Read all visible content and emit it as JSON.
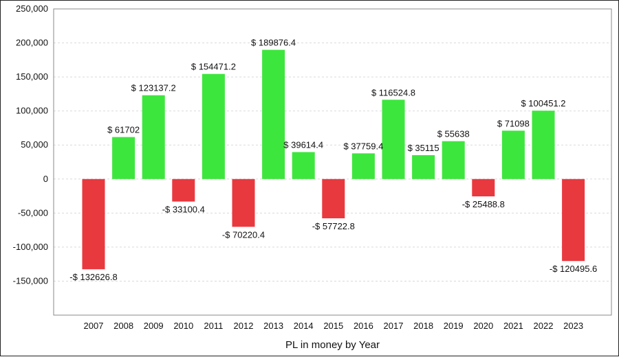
{
  "chart_data": {
    "type": "bar",
    "title": "",
    "xlabel": "PL in money by Year",
    "ylabel": "",
    "categories": [
      "2007",
      "2008",
      "2009",
      "2010",
      "2011",
      "2012",
      "2013",
      "2014",
      "2015",
      "2016",
      "2017",
      "2018",
      "2019",
      "2020",
      "2021",
      "2022",
      "2023"
    ],
    "values": [
      -132626.8,
      61702,
      123137.2,
      -33100.4,
      154471.2,
      -70220.4,
      189876.4,
      39614.4,
      -57722.8,
      37759.4,
      116524.8,
      35115,
      55638,
      -25488.8,
      71098,
      100451.2,
      -120495.6
    ],
    "data_labels": [
      "-$ 132626.8",
      "$ 61702",
      "$ 123137.2",
      "-$ 33100.4",
      "$ 154471.2",
      "-$ 70220.4",
      "$ 189876.4",
      "$ 39614.4",
      "-$ 57722.8",
      "$ 37759.4",
      "$ 116524.8",
      "$ 35115",
      "$ 55638",
      "-$ 25488.8",
      "$ 71098",
      "$ 100451.2",
      "-$ 120495.6"
    ],
    "y_ticks": [
      250000,
      200000,
      150000,
      100000,
      50000,
      0,
      -50000,
      -100000,
      -150000
    ],
    "y_tick_labels": [
      "250,000",
      "200,000",
      "150,000",
      "100,000",
      "50,000",
      "0",
      "-50,000",
      "-100,000",
      "-150,000"
    ],
    "ylim": [
      -200000,
      250000
    ],
    "grid": true,
    "colors": {
      "positive": "#3de63d",
      "negative": "#e8393f",
      "grid": "#d9d9d9",
      "axis": "#888888"
    }
  }
}
